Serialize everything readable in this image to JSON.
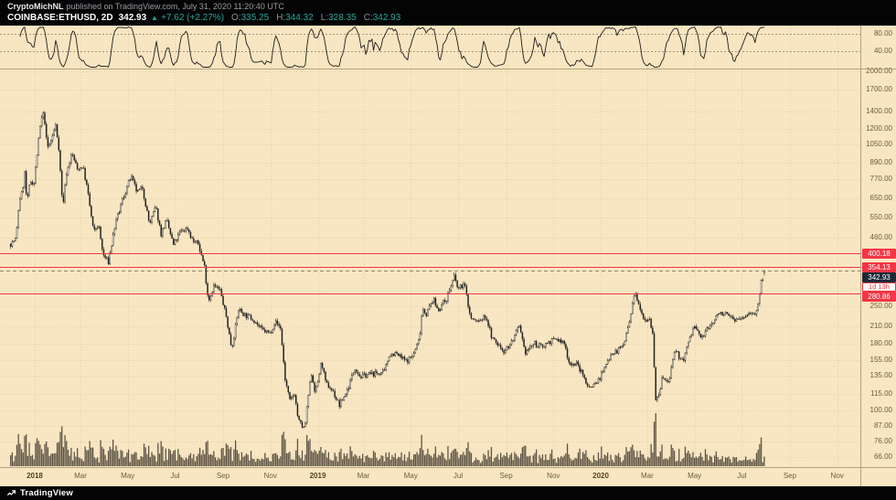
{
  "header": {
    "author": "CryptoMichNL",
    "attribution_rest": "published on TradingView.com, July 31, 2020 11:20:40 UTC",
    "symbol": "COINBASE:ETHUSD, 2D",
    "last_price": "342.93",
    "change_arrow": "▲",
    "change": "+7.62 (+2.27%)",
    "ohlc": {
      "o_label": "O:",
      "o": "335.25",
      "h_label": "H:",
      "h": "344.32",
      "l_label": "L:",
      "l": "328.35",
      "c_label": "C:",
      "c": "342.93"
    }
  },
  "footer": {
    "brand": "TradingView"
  },
  "colors": {
    "background": "#f8e6c2",
    "axis_text": "#6d5b3c",
    "separator": "#b5a17c",
    "level_red": "#f23645",
    "badge_dark": "#1e2836",
    "header_green": "#26a69a",
    "candle_dark": "#22211f",
    "candle_light": "#fbfaf5",
    "volume": "rgba(55,48,38,0.8)"
  },
  "chart_data": {
    "type": "candlestick",
    "symbol": "COINBASE:ETHUSD",
    "timeframe": "2D",
    "y_scale": "log",
    "price_ticks": [
      {
        "v": 2000,
        "label": "2000.00"
      },
      {
        "v": 1700,
        "label": "1700.00"
      },
      {
        "v": 1400,
        "label": "1400.00"
      },
      {
        "v": 1200,
        "label": "1200.00"
      },
      {
        "v": 1050,
        "label": "1050.00"
      },
      {
        "v": 890,
        "label": "890.00"
      },
      {
        "v": 770,
        "label": "770.00"
      },
      {
        "v": 650,
        "label": "650.00"
      },
      {
        "v": 550,
        "label": "550.00"
      },
      {
        "v": 460,
        "label": "460.00"
      },
      {
        "v": 250,
        "label": "250.00"
      },
      {
        "v": 210,
        "label": "210.00"
      },
      {
        "v": 180,
        "label": "180.00"
      },
      {
        "v": 155,
        "label": "155.00"
      },
      {
        "v": 135,
        "label": "135.00"
      },
      {
        "v": 115,
        "label": "115.00"
      },
      {
        "v": 100,
        "label": "100.00"
      },
      {
        "v": 87,
        "label": "87.00"
      },
      {
        "v": 76,
        "label": "76.00"
      },
      {
        "v": 66,
        "label": "66.00"
      }
    ],
    "time_ticks": [
      {
        "label": "2018",
        "date": "2018-01-01",
        "year": true
      },
      {
        "label": "Mar",
        "date": "2018-03-01"
      },
      {
        "label": "May",
        "date": "2018-05-01"
      },
      {
        "label": "Jul",
        "date": "2018-07-01"
      },
      {
        "label": "Sep",
        "date": "2018-09-01"
      },
      {
        "label": "Nov",
        "date": "2018-11-01"
      },
      {
        "label": "2019",
        "date": "2019-01-01",
        "year": true
      },
      {
        "label": "Mar",
        "date": "2019-03-01"
      },
      {
        "label": "May",
        "date": "2019-05-01"
      },
      {
        "label": "Jul",
        "date": "2019-07-01"
      },
      {
        "label": "Sep",
        "date": "2019-09-01"
      },
      {
        "label": "Nov",
        "date": "2019-11-01"
      },
      {
        "label": "2020",
        "date": "2020-01-01",
        "year": true
      },
      {
        "label": "Mar",
        "date": "2020-03-01"
      },
      {
        "label": "May",
        "date": "2020-05-01"
      },
      {
        "label": "Jul",
        "date": "2020-07-01"
      },
      {
        "label": "Sep",
        "date": "2020-09-01"
      },
      {
        "label": "Nov",
        "date": "2020-11-01"
      }
    ],
    "levels": [
      {
        "v": 400.18,
        "label": "400.18"
      },
      {
        "v": 354.13,
        "label": "354.13"
      },
      {
        "v": 280.86,
        "label": "280.86"
      }
    ],
    "last_price": {
      "v": 342.93,
      "label": "342.93"
    },
    "countdown": "1d 13h",
    "last_candle": {
      "date": "2020-07-31",
      "o": 335.25,
      "h": 344.32,
      "l": 328.35,
      "c": 342.93
    },
    "close_anchors": [
      [
        "2017-12-01",
        435
      ],
      [
        "2017-12-08",
        455
      ],
      [
        "2017-12-12",
        640
      ],
      [
        "2017-12-16",
        690
      ],
      [
        "2017-12-19",
        815
      ],
      [
        "2017-12-22",
        615
      ],
      [
        "2017-12-26",
        760
      ],
      [
        "2017-12-31",
        745
      ],
      [
        "2018-01-04",
        960
      ],
      [
        "2018-01-09",
        1300
      ],
      [
        "2018-01-13",
        1385
      ],
      [
        "2018-01-17",
        1010
      ],
      [
        "2018-01-21",
        1060
      ],
      [
        "2018-01-28",
        1240
      ],
      [
        "2018-02-01",
        1020
      ],
      [
        "2018-02-06",
        600
      ],
      [
        "2018-02-11",
        815
      ],
      [
        "2018-02-18",
        970
      ],
      [
        "2018-02-25",
        840
      ],
      [
        "2018-03-04",
        865
      ],
      [
        "2018-03-10",
        700
      ],
      [
        "2018-03-18",
        480
      ],
      [
        "2018-03-24",
        520
      ],
      [
        "2018-03-30",
        395
      ],
      [
        "2018-04-06",
        370
      ],
      [
        "2018-04-14",
        505
      ],
      [
        "2018-04-24",
        640
      ],
      [
        "2018-05-05",
        790
      ],
      [
        "2018-05-13",
        685
      ],
      [
        "2018-05-20",
        715
      ],
      [
        "2018-05-29",
        515
      ],
      [
        "2018-06-06",
        605
      ],
      [
        "2018-06-13",
        475
      ],
      [
        "2018-06-20",
        535
      ],
      [
        "2018-06-29",
        430
      ],
      [
        "2018-07-08",
        485
      ],
      [
        "2018-07-17",
        500
      ],
      [
        "2018-07-24",
        445
      ],
      [
        "2018-07-31",
        435
      ],
      [
        "2018-08-08",
        355
      ],
      [
        "2018-08-13",
        262
      ],
      [
        "2018-08-20",
        300
      ],
      [
        "2018-08-28",
        288
      ],
      [
        "2018-09-05",
        228
      ],
      [
        "2018-09-12",
        172
      ],
      [
        "2018-09-21",
        244
      ],
      [
        "2018-09-30",
        231
      ],
      [
        "2018-10-10",
        224
      ],
      [
        "2018-10-20",
        204
      ],
      [
        "2018-10-31",
        197
      ],
      [
        "2018-11-07",
        219
      ],
      [
        "2018-11-14",
        207
      ],
      [
        "2018-11-20",
        131
      ],
      [
        "2018-11-26",
        108
      ],
      [
        "2018-12-02",
        116
      ],
      [
        "2018-12-07",
        91
      ],
      [
        "2018-12-15",
        84
      ],
      [
        "2018-12-20",
        114
      ],
      [
        "2018-12-24",
        138
      ],
      [
        "2018-12-29",
        116
      ],
      [
        "2019-01-06",
        154
      ],
      [
        "2019-01-11",
        127
      ],
      [
        "2019-01-20",
        119
      ],
      [
        "2019-01-29",
        104
      ],
      [
        "2019-02-08",
        119
      ],
      [
        "2019-02-18",
        146
      ],
      [
        "2019-02-25",
        134
      ],
      [
        "2019-03-06",
        137
      ],
      [
        "2019-03-16",
        138
      ],
      [
        "2019-03-28",
        140
      ],
      [
        "2019-04-03",
        163
      ],
      [
        "2019-04-11",
        165
      ],
      [
        "2019-04-25",
        154
      ],
      [
        "2019-05-04",
        162
      ],
      [
        "2019-05-12",
        188
      ],
      [
        "2019-05-16",
        248
      ],
      [
        "2019-05-21",
        234
      ],
      [
        "2019-05-30",
        267
      ],
      [
        "2019-06-05",
        242
      ],
      [
        "2019-06-16",
        268
      ],
      [
        "2019-06-26",
        325
      ],
      [
        "2019-07-01",
        290
      ],
      [
        "2019-07-09",
        307
      ],
      [
        "2019-07-17",
        226
      ],
      [
        "2019-07-26",
        218
      ],
      [
        "2019-08-06",
        229
      ],
      [
        "2019-08-14",
        188
      ],
      [
        "2019-08-29",
        169
      ],
      [
        "2019-09-06",
        178
      ],
      [
        "2019-09-18",
        208
      ],
      [
        "2019-09-25",
        166
      ],
      [
        "2019-10-07",
        180
      ],
      [
        "2019-10-16",
        175
      ],
      [
        "2019-10-26",
        183
      ],
      [
        "2019-11-05",
        187
      ],
      [
        "2019-11-15",
        180
      ],
      [
        "2019-11-22",
        150
      ],
      [
        "2019-12-01",
        151
      ],
      [
        "2019-12-17",
        122
      ],
      [
        "2019-12-28",
        129
      ],
      [
        "2020-01-06",
        144
      ],
      [
        "2020-01-14",
        166
      ],
      [
        "2020-01-22",
        168
      ],
      [
        "2020-01-31",
        180
      ],
      [
        "2020-02-08",
        223
      ],
      [
        "2020-02-14",
        284
      ],
      [
        "2020-02-19",
        259
      ],
      [
        "2020-02-26",
        224
      ],
      [
        "2020-03-04",
        224
      ],
      [
        "2020-03-08",
        199
      ],
      [
        "2020-03-12",
        110
      ],
      [
        "2020-03-16",
        112
      ],
      [
        "2020-03-20",
        133
      ],
      [
        "2020-03-28",
        127
      ],
      [
        "2020-04-06",
        168
      ],
      [
        "2020-04-16",
        154
      ],
      [
        "2020-04-30",
        211
      ],
      [
        "2020-05-10",
        189
      ],
      [
        "2020-05-20",
        209
      ],
      [
        "2020-05-31",
        231
      ],
      [
        "2020-06-02",
        240
      ],
      [
        "2020-06-11",
        231
      ],
      [
        "2020-06-15",
        229
      ],
      [
        "2020-06-27",
        221
      ],
      [
        "2020-07-05",
        228
      ],
      [
        "2020-07-13",
        239
      ],
      [
        "2020-07-21",
        237
      ],
      [
        "2020-07-24",
        279
      ],
      [
        "2020-07-26",
        310
      ],
      [
        "2020-07-28",
        318
      ],
      [
        "2020-07-31",
        342.93
      ]
    ],
    "oscillator": {
      "type": "oscillator-pane",
      "range": [
        0,
        100
      ],
      "levels": [
        {
          "v": 80,
          "label": "80.00"
        },
        {
          "v": 40,
          "label": "40.00"
        }
      ]
    },
    "volume": {
      "shown": true,
      "position": "bottom"
    }
  }
}
